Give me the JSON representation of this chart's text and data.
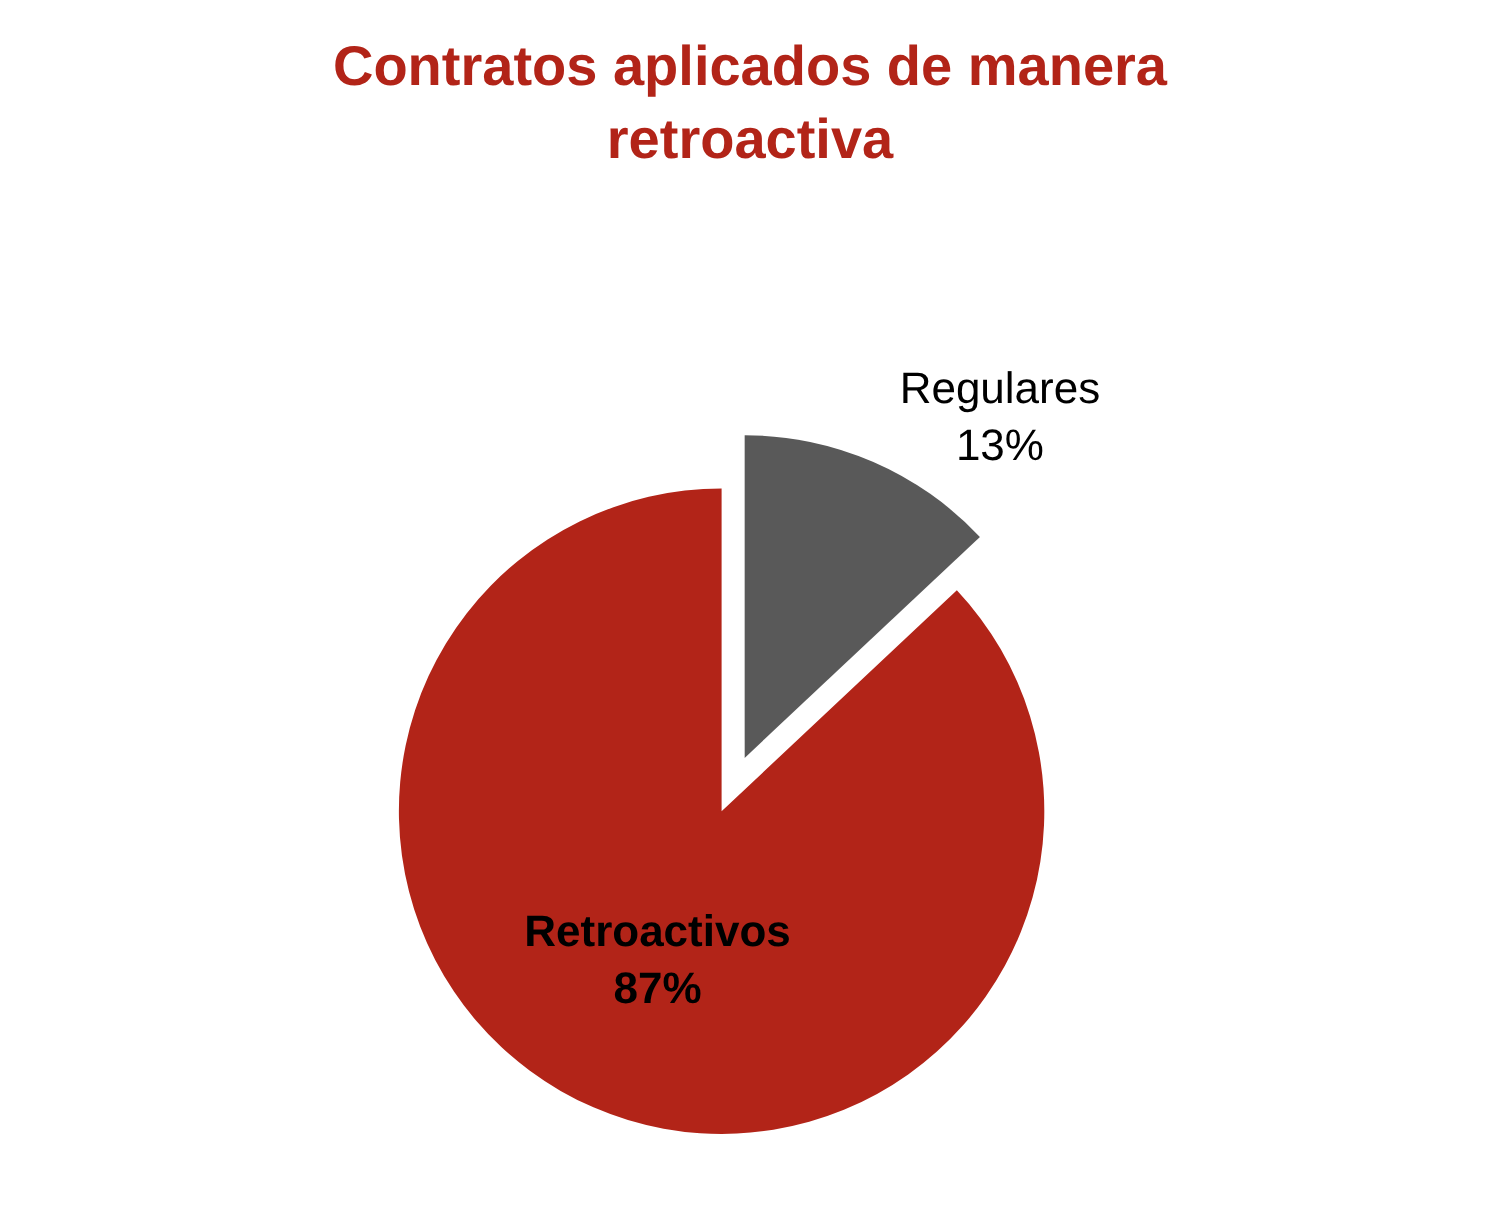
{
  "chart_data": {
    "type": "pie",
    "title": "Contratos aplicados de manera\nretroactiva",
    "categories": [
      "Regulares",
      "Retroactivos"
    ],
    "values": [
      13,
      87
    ],
    "value_labels": [
      "13%",
      "87%"
    ],
    "colors": [
      "#595959",
      "#b22418"
    ]
  }
}
